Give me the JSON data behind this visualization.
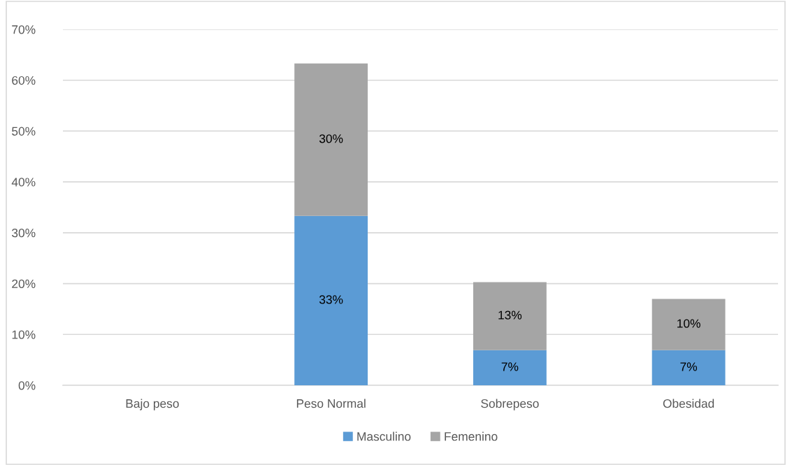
{
  "chart_data": {
    "type": "bar",
    "stacked": true,
    "categories": [
      "Bajo peso",
      "Peso Normal",
      "Sobrepeso",
      "Obesidad"
    ],
    "series": [
      {
        "name": "Masculino",
        "color": "#5b9bd5",
        "values": [
          null,
          33.3,
          6.9,
          6.9
        ],
        "value_labels": [
          null,
          "33%",
          "7%",
          "7%"
        ]
      },
      {
        "name": "Femenino",
        "color": "#a5a5a5",
        "values": [
          null,
          30.0,
          13.4,
          10.1
        ],
        "value_labels": [
          null,
          "30%",
          "13%",
          "10%"
        ]
      }
    ],
    "ylim": [
      0,
      70
    ],
    "yticks": [
      {
        "value": 0,
        "label": "0%"
      },
      {
        "value": 10,
        "label": "10%"
      },
      {
        "value": 20,
        "label": "20%"
      },
      {
        "value": 30,
        "label": "30%"
      },
      {
        "value": 40,
        "label": "40%"
      },
      {
        "value": 50,
        "label": "50%"
      },
      {
        "value": 60,
        "label": "60%"
      },
      {
        "value": 70,
        "label": "70%"
      }
    ],
    "grid": "y",
    "legend": "bottom"
  }
}
